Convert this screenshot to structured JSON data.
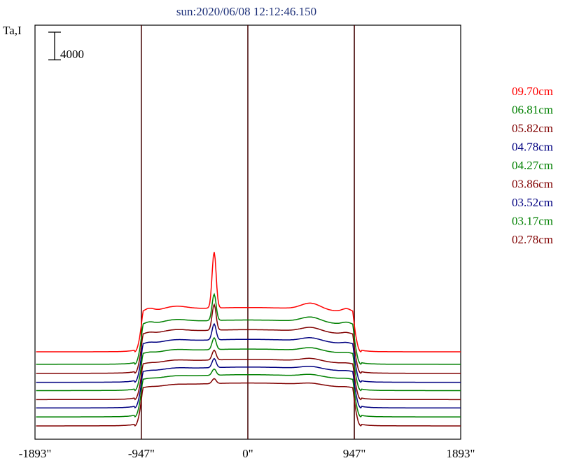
{
  "chart_data": {
    "type": "line",
    "title": "sun:2020/06/08 12:12:46.150",
    "ylabel": "Ta,I",
    "scale_bar_label": "4000",
    "scale_bar_value": 4000,
    "xlim": [
      -1893,
      1893
    ],
    "x_ticks": [
      {
        "value": -1893,
        "label": "-1893\""
      },
      {
        "value": -947,
        "label": "-947\""
      },
      {
        "value": 0,
        "label": "0\""
      },
      {
        "value": 947,
        "label": "947\""
      },
      {
        "value": 1893,
        "label": "1893\""
      }
    ],
    "vertical_lines": [
      -947,
      0,
      947
    ],
    "legend_placement": "right",
    "series": [
      {
        "name": "09.70cm",
        "color": "#ff0000",
        "baseline": 10700,
        "disk": 6400,
        "limb": 500,
        "peak": 8100,
        "bump": 900
      },
      {
        "name": "06.81cm",
        "color": "#008000",
        "baseline": 8900,
        "disk": 6400,
        "limb": 350,
        "peak": 3800,
        "bump": 700
      },
      {
        "name": "05.82cm",
        "color": "#800000",
        "baseline": 7600,
        "disk": 6300,
        "limb": 250,
        "peak": 3700,
        "bump": 600
      },
      {
        "name": "04.78cm",
        "color": "#000080",
        "baseline": 6300,
        "disk": 6200,
        "limb": 200,
        "peak": 2300,
        "bump": 500
      },
      {
        "name": "04.27cm",
        "color": "#008000",
        "baseline": 5100,
        "disk": 6000,
        "limb": 150,
        "peak": 1700,
        "bump": 450
      },
      {
        "name": "03.86cm",
        "color": "#800000",
        "baseline": 3800,
        "disk": 5800,
        "limb": 100,
        "peak": 1400,
        "bump": 400
      },
      {
        "name": "03.52cm",
        "color": "#000080",
        "baseline": 2600,
        "disk": 5900,
        "limb": 100,
        "peak": 1300,
        "bump": 350
      },
      {
        "name": "03.17cm",
        "color": "#008000",
        "baseline": 1300,
        "disk": 6100,
        "limb": 100,
        "peak": 900,
        "bump": 300
      },
      {
        "name": "02.78cm",
        "color": "#800000",
        "baseline": 0,
        "disk": 6200,
        "limb": 100,
        "peak": 700,
        "bump": 250
      }
    ]
  }
}
